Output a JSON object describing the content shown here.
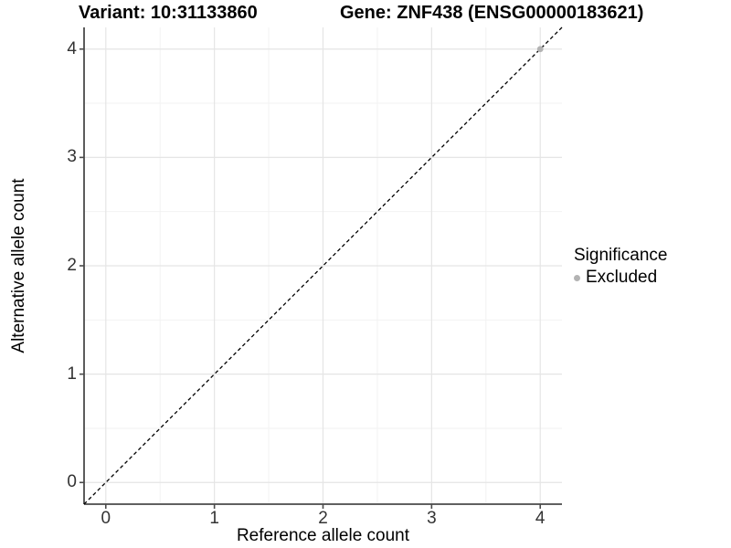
{
  "titles": {
    "variant": "Variant: 10:31133860",
    "gene": "Gene: ZNF438 (ENSG00000183621)"
  },
  "chart_data": {
    "type": "scatter",
    "xlabel": "Reference allele count",
    "ylabel": "Alternative allele count",
    "xlim": [
      -0.2,
      4.2
    ],
    "ylim": [
      -0.2,
      4.2
    ],
    "xticks": [
      0,
      1,
      2,
      3,
      4
    ],
    "yticks": [
      0,
      1,
      2,
      3,
      4
    ],
    "xtick_labels": [
      "0",
      "1",
      "2",
      "3",
      "4"
    ],
    "ytick_labels": [
      "0",
      "1",
      "2",
      "3",
      "4"
    ],
    "grid": true,
    "minor_grid": true,
    "legend_position": "right",
    "series": [
      {
        "name": "Excluded",
        "marker": "circle",
        "color": "#b3b3b3",
        "points": [
          {
            "x": 4,
            "y": 4
          }
        ]
      }
    ],
    "identity_line": {
      "style": "dashed",
      "color": "#000000",
      "from": [
        -0.2,
        -0.2
      ],
      "to": [
        4.2,
        4.2
      ]
    }
  },
  "legend": {
    "title": "Significance",
    "items": [
      {
        "label": "Excluded",
        "color": "#b3b3b3"
      }
    ]
  },
  "colors": {
    "background": "#ffffff",
    "axis_line": "#4a4a4a",
    "tick_mark": "#4a4a4a",
    "tick_text": "#333333",
    "major_grid": "#e5e5e5",
    "minor_grid": "#f2f2f2",
    "point": "#b3b3b3"
  }
}
